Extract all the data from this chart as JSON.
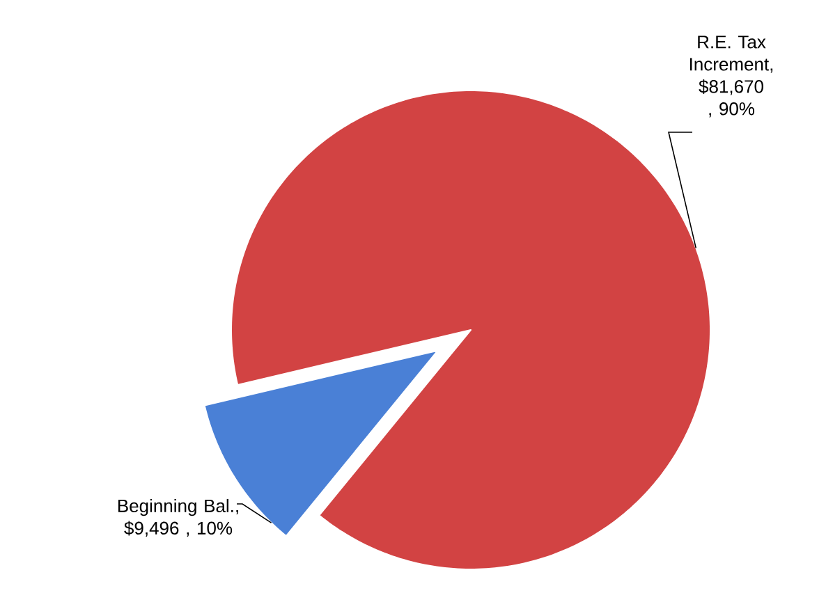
{
  "chart_data": {
    "type": "pie",
    "categories": [
      "R.E. Tax Increment",
      "Beginning Bal."
    ],
    "values": [
      81670,
      9496
    ],
    "colors": [
      "#d24343",
      "#4a80d6"
    ],
    "value_labels": [
      ", $81,670 , 90%",
      ", $9,496 , 10%"
    ]
  }
}
